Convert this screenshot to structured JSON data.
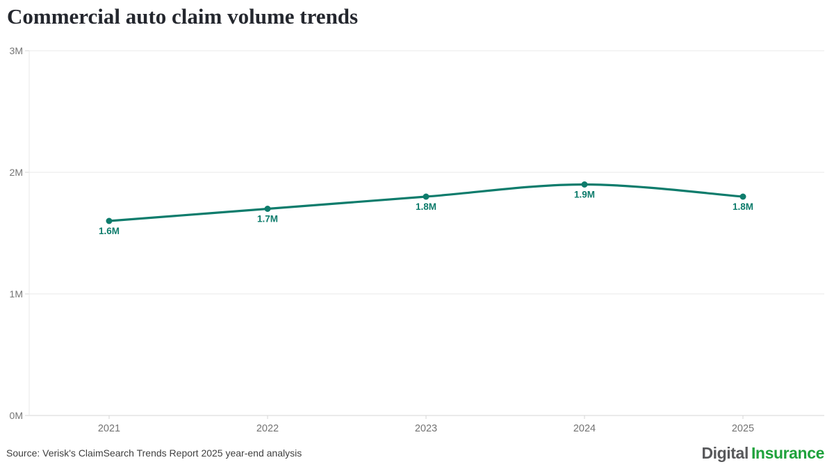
{
  "chart_data": {
    "type": "line",
    "title": "Commercial auto claim volume trends",
    "categories": [
      "2021",
      "2022",
      "2023",
      "2024",
      "2025"
    ],
    "values": [
      1600000,
      1700000,
      1800000,
      1900000,
      1800000
    ],
    "point_labels": [
      "1.6M",
      "1.7M",
      "1.8M",
      "1.9M",
      "1.8M"
    ],
    "ylim": [
      0,
      3000000
    ],
    "yticks": [
      {
        "value": 0,
        "label": "0M"
      },
      {
        "value": 1000000,
        "label": "1M"
      },
      {
        "value": 2000000,
        "label": "2M"
      },
      {
        "value": 3000000,
        "label": "3M"
      }
    ],
    "grid": true,
    "legend": "none",
    "line_color": "#0e7c6c",
    "point_label_color": "#0e7c6c",
    "grid_color": "#e9e9e9",
    "axis_line_color": "#d6d6d6",
    "axis_text_color": "#757575",
    "source": "Source: Verisk's ClaimSearch Trends Report 2025 year-end analysis"
  },
  "logo": {
    "part1": "Digital",
    "part2": "Insurance",
    "part1_color": "#58595b",
    "part2_color": "#1fa23c"
  }
}
